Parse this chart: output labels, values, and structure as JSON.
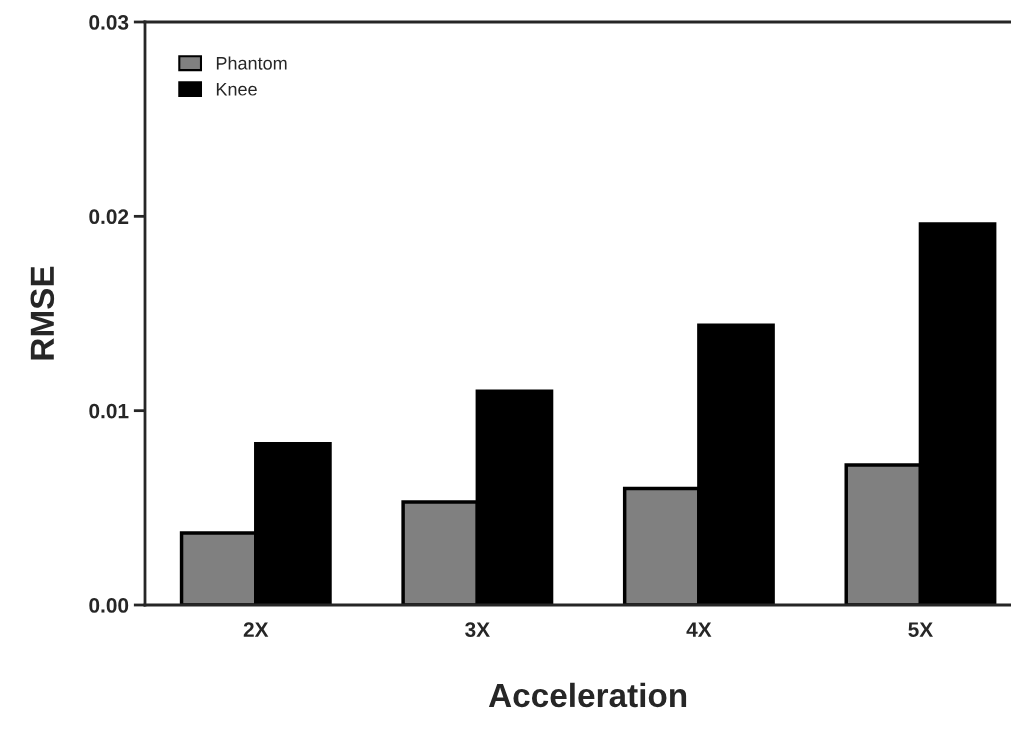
{
  "chart_data": {
    "type": "bar",
    "xlabel": "Acceleration",
    "ylabel": "RMSE",
    "categories": [
      "2X",
      "3X",
      "4X",
      "5X"
    ],
    "series": [
      {
        "name": "Phantom",
        "color": "#808080",
        "values": [
          0.0037,
          0.0053,
          0.006,
          0.0072
        ]
      },
      {
        "name": "Knee",
        "color": "#000000",
        "values": [
          0.0083,
          0.011,
          0.0144,
          0.0196
        ]
      }
    ],
    "ylim": [
      0,
      0.03
    ],
    "yticks": [
      {
        "value": 0,
        "label": "0.00"
      },
      0.01,
      0.02,
      0.03
    ],
    "grid": false,
    "legend": "top left"
  }
}
